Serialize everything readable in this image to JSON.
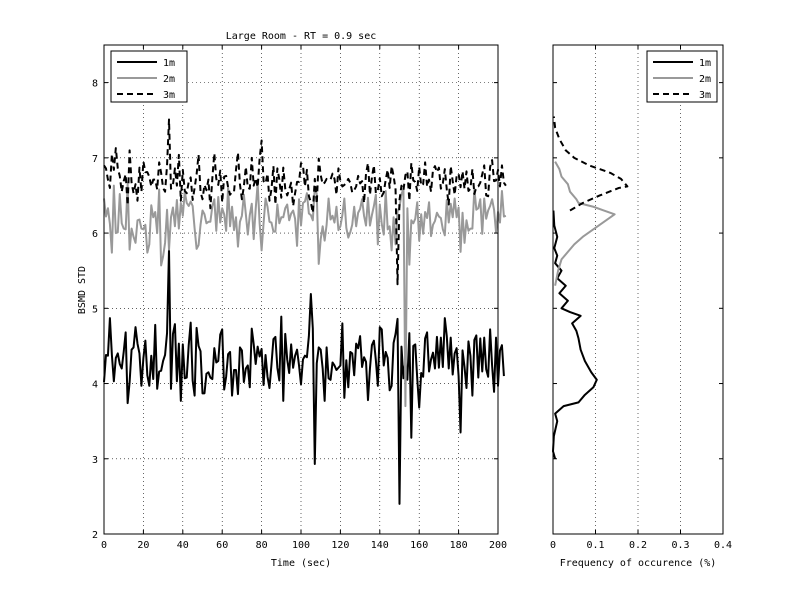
{
  "chart_data": [
    {
      "type": "line",
      "title": "Large Room -  RT = 0.9 sec",
      "xlabel": "Time (sec)",
      "ylabel": "BSMD STD",
      "xlim": [
        0,
        200
      ],
      "ylim": [
        2,
        8.5
      ],
      "xticks": [
        "0",
        "20",
        "40",
        "60",
        "80",
        "100",
        "120",
        "140",
        "160",
        "180",
        "200"
      ],
      "yticks": [
        "2",
        "3",
        "4",
        "5",
        "6",
        "7",
        "8"
      ],
      "grid": true,
      "legend_position": "top-left",
      "x_step": 1,
      "series": [
        {
          "name": "1m",
          "color": "#000000",
          "dash": "solid",
          "values": [
            4.02,
            4.38,
            4.37,
            4.87,
            4.38,
            4.03,
            4.34,
            4.4,
            4.26,
            4.2,
            4.42,
            4.68,
            3.74,
            4.02,
            4.45,
            4.48,
            4.75,
            4.53,
            4.4,
            3.97,
            4.34,
            4.57,
            4.11,
            3.97,
            4.37,
            4.06,
            4.78,
            3.93,
            4.16,
            4.17,
            4.3,
            4.38,
            4.67,
            5.78,
            3.93,
            4.66,
            4.79,
            4.03,
            4.53,
            3.77,
            4.52,
            4.07,
            4.08,
            4.51,
            4.81,
            4.04,
            3.84,
            4.74,
            4.5,
            4.43,
            3.87,
            3.87,
            4.13,
            4.15,
            4.08,
            4.06,
            4.47,
            4.28,
            4.3,
            4.65,
            4.72,
            3.92,
            4.09,
            4.39,
            4.42,
            3.84,
            4.18,
            4.18,
            3.86,
            4.48,
            4.44,
            4.02,
            4.2,
            4.24,
            3.95,
            4.73,
            4.52,
            4.26,
            4.49,
            4.36,
            4.46,
            3.98,
            4.38,
            4.09,
            3.94,
            4.25,
            4.59,
            4.62,
            4.21,
            4.04,
            4.89,
            3.77,
            4.66,
            4.32,
            4.14,
            4.52,
            4.21,
            4.37,
            4.45,
            4.24,
            3.99,
            4.32,
            4.37,
            4.35,
            4.63,
            5.19,
            4.73,
            2.93,
            4.27,
            4.48,
            4.45,
            4.2,
            3.77,
            4.48,
            4.07,
            4.05,
            4.28,
            4.24,
            4.18,
            4.21,
            4.24,
            4.8,
            3.81,
            4.31,
            3.95,
            4.42,
            4.4,
            4.11,
            4.53,
            4.47,
            4.63,
            4.22,
            4.35,
            4.29,
            3.78,
            4.2,
            4.51,
            4.57,
            4.31,
            3.97,
            4.75,
            4.72,
            4.24,
            4.42,
            4.34,
            3.91,
            3.97,
            4.54,
            4.66,
            4.86,
            2.4,
            4.49,
            4.07,
            4.3,
            4.05,
            4.67,
            3.28,
            4.5,
            4.52,
            4.07,
            3.68,
            4.14,
            4.09,
            4.6,
            4.68,
            4.16,
            4.32,
            4.41,
            4.2,
            4.62,
            4.21,
            4.61,
            4.22,
            4.87,
            4.63,
            4.2,
            4.61,
            4.12,
            4.4,
            4.47,
            4.1,
            3.35,
            4.44,
            4.22,
            3.94,
            4.56,
            4.37,
            3.84,
            4.58,
            4.64,
            4.08,
            4.6,
            4.16,
            4.61,
            4.19,
            4.09,
            4.72,
            4.24,
            3.89,
            4.61,
            3.97,
            4.44,
            4.51,
            4.1
          ]
        },
        {
          "name": "2m",
          "color": "#999999",
          "dash": "solid",
          "values": [
            6.46,
            6.22,
            6.33,
            6.12,
            5.74,
            6.63,
            6.0,
            6.01,
            6.52,
            6.13,
            6.06,
            6.05,
            6.65,
            5.78,
            6.06,
            5.95,
            5.87,
            6.17,
            6.18,
            6.06,
            6.05,
            6.11,
            5.74,
            5.85,
            6.37,
            6.21,
            6.28,
            6.0,
            6.58,
            5.57,
            5.69,
            5.87,
            6.31,
            5.78,
            6.21,
            6.34,
            6.09,
            6.44,
            6.06,
            6.4,
            6.23,
            6.55,
            6.4,
            6.36,
            6.42,
            6.36,
            6.06,
            5.79,
            5.84,
            6.11,
            6.3,
            6.25,
            6.13,
            6.15,
            6.15,
            6.36,
            6.45,
            6.03,
            6.48,
            6.14,
            6.33,
            6.25,
            6.03,
            6.61,
            6.09,
            6.35,
            6.04,
            6.21,
            5.82,
            6.15,
            6.23,
            6.51,
            6.25,
            5.98,
            6.24,
            6.39,
            5.92,
            6.32,
            6.66,
            6.13,
            5.77,
            6.13,
            6.46,
            6.35,
            6.15,
            6.14,
            6.02,
            6.02,
            6.38,
            6.13,
            6.21,
            6.21,
            6.33,
            6.38,
            6.17,
            6.26,
            6.3,
            6.19,
            5.83,
            6.45,
            6.1,
            6.4,
            6.42,
            6.53,
            6.26,
            6.24,
            6.17,
            6.61,
            6.52,
            5.59,
            5.92,
            6.09,
            5.9,
            6.11,
            6.46,
            6.18,
            6.23,
            6.14,
            6.35,
            6.04,
            6.09,
            6.24,
            6.46,
            6.07,
            5.94,
            6.01,
            6.11,
            6.35,
            6.09,
            6.27,
            6.32,
            6.45,
            6.23,
            6.1,
            6.47,
            6.1,
            6.24,
            6.36,
            6.51,
            5.85,
            6.38,
            6.12,
            5.98,
            6.56,
            6.05,
            6.09,
            5.77,
            6.21,
            5.85,
            6.29,
            6.34,
            6.52,
            6.58,
            3.7,
            6.33,
            5.58,
            6.17,
            6.13,
            6.19,
            6.41,
            5.9,
            6.25,
            5.99,
            6.28,
            6.2,
            6.41,
            5.96,
            6.11,
            6.16,
            6.27,
            6.22,
            6.2,
            6.05,
            5.97,
            6.44,
            6.14,
            6.39,
            6.21,
            6.46,
            6.21,
            6.34,
            5.75,
            6.27,
            5.87,
            6.17,
            6.03,
            6.06,
            6.06,
            6.59,
            6.31,
            6.33,
            6.45,
            5.99,
            6.46,
            6.19,
            6.3,
            6.36,
            6.45,
            6.31,
            6.01,
            6.28,
            6.14,
            6.56,
            6.22,
            6.23
          ]
        },
        {
          "name": "3m",
          "color": "#000000",
          "dash": "dashed",
          "values": [
            6.9,
            6.86,
            6.71,
            6.6,
            7.05,
            6.84,
            7.13,
            6.86,
            6.76,
            6.55,
            6.69,
            6.78,
            6.37,
            7.1,
            6.67,
            6.53,
            6.65,
            6.43,
            6.87,
            6.55,
            6.95,
            6.81,
            6.81,
            6.75,
            6.62,
            6.71,
            6.71,
            6.58,
            6.94,
            6.8,
            6.6,
            6.55,
            6.9,
            7.51,
            6.59,
            6.64,
            6.86,
            6.63,
            7.04,
            6.43,
            6.84,
            6.56,
            6.53,
            6.68,
            6.74,
            6.44,
            6.6,
            6.78,
            7.04,
            6.55,
            6.45,
            6.64,
            6.57,
            6.71,
            6.33,
            6.73,
            7.06,
            6.72,
            6.64,
            6.83,
            6.41,
            6.75,
            6.76,
            6.61,
            6.51,
            6.55,
            6.55,
            6.84,
            7.07,
            6.65,
            6.45,
            6.62,
            6.88,
            6.6,
            6.59,
            7.0,
            6.63,
            6.73,
            6.61,
            6.99,
            7.23,
            6.69,
            6.66,
            6.79,
            6.43,
            6.58,
            6.89,
            6.38,
            6.86,
            6.71,
            6.47,
            6.87,
            6.59,
            6.5,
            6.58,
            6.67,
            6.36,
            6.53,
            6.68,
            6.68,
            6.93,
            6.9,
            6.62,
            6.84,
            6.49,
            6.41,
            6.27,
            6.72,
            6.39,
            6.99,
            6.77,
            6.65,
            6.67,
            6.72,
            6.71,
            6.71,
            6.79,
            6.72,
            6.51,
            6.86,
            6.69,
            6.62,
            6.64,
            6.67,
            6.72,
            6.67,
            6.54,
            6.57,
            6.62,
            6.76,
            6.66,
            6.69,
            6.4,
            6.79,
            6.93,
            6.51,
            6.74,
            6.9,
            6.53,
            6.57,
            6.73,
            6.49,
            6.54,
            6.71,
            6.84,
            6.6,
            6.89,
            6.76,
            6.58,
            5.32,
            6.44,
            6.63,
            6.57,
            6.77,
            6.82,
            6.43,
            6.93,
            6.7,
            6.68,
            6.56,
            6.88,
            6.63,
            6.65,
            6.94,
            6.62,
            6.71,
            6.55,
            6.84,
            6.89,
            6.81,
            6.87,
            6.59,
            6.66,
            6.85,
            6.58,
            6.38,
            6.89,
            6.69,
            6.51,
            6.76,
            6.79,
            6.61,
            6.82,
            6.59,
            6.82,
            6.56,
            6.59,
            6.85,
            6.52,
            6.61,
            6.62,
            6.67,
            6.78,
            6.9,
            6.5,
            6.49,
            6.88,
            6.97,
            6.69,
            6.7,
            6.84,
            6.62,
            6.9,
            6.67,
            6.63
          ]
        }
      ]
    },
    {
      "type": "line",
      "xlabel": "Frequency of occurence (%)",
      "xlim": [
        0,
        0.4
      ],
      "ylim": [
        2,
        8.5
      ],
      "xticks": [
        "0",
        "0.1",
        "0.2",
        "0.3",
        "0.4"
      ],
      "grid": true,
      "legend_position": "top-right",
      "series": [
        {
          "name": "1m",
          "color": "#000000",
          "dash": "solid",
          "points": [
            [
              0.005,
              3.0
            ],
            [
              0.0,
              3.1
            ],
            [
              0.002,
              3.3
            ],
            [
              0.01,
              3.5
            ],
            [
              0.005,
              3.6
            ],
            [
              0.025,
              3.7
            ],
            [
              0.06,
              3.75
            ],
            [
              0.075,
              3.85
            ],
            [
              0.095,
              3.95
            ],
            [
              0.103,
              4.05
            ],
            [
              0.09,
              4.15
            ],
            [
              0.075,
              4.3
            ],
            [
              0.065,
              4.45
            ],
            [
              0.06,
              4.6
            ],
            [
              0.055,
              4.7
            ],
            [
              0.045,
              4.8
            ],
            [
              0.065,
              4.9
            ],
            [
              0.04,
              4.95
            ],
            [
              0.02,
              5.0
            ],
            [
              0.035,
              5.1
            ],
            [
              0.015,
              5.2
            ],
            [
              0.03,
              5.3
            ],
            [
              0.01,
              5.4
            ],
            [
              0.02,
              5.5
            ],
            [
              0.005,
              5.6
            ],
            [
              0.01,
              5.7
            ],
            [
              0.003,
              5.8
            ],
            [
              0.01,
              5.95
            ],
            [
              0.003,
              6.1
            ],
            [
              0.001,
              6.3
            ]
          ]
        },
        {
          "name": "2m",
          "color": "#999999",
          "dash": "solid",
          "points": [
            [
              0.005,
              5.3
            ],
            [
              0.012,
              5.5
            ],
            [
              0.02,
              5.65
            ],
            [
              0.035,
              5.75
            ],
            [
              0.05,
              5.85
            ],
            [
              0.07,
              5.95
            ],
            [
              0.095,
              6.05
            ],
            [
              0.12,
              6.15
            ],
            [
              0.145,
              6.25
            ],
            [
              0.12,
              6.3
            ],
            [
              0.095,
              6.35
            ],
            [
              0.06,
              6.4
            ],
            [
              0.055,
              6.45
            ],
            [
              0.04,
              6.55
            ],
            [
              0.035,
              6.65
            ],
            [
              0.02,
              6.75
            ],
            [
              0.015,
              6.85
            ],
            [
              0.005,
              6.95
            ]
          ]
        },
        {
          "name": "3m",
          "color": "#000000",
          "dash": "dashed",
          "points": [
            [
              0.04,
              6.3
            ],
            [
              0.07,
              6.4
            ],
            [
              0.11,
              6.5
            ],
            [
              0.155,
              6.6
            ],
            [
              0.175,
              6.62
            ],
            [
              0.16,
              6.72
            ],
            [
              0.135,
              6.8
            ],
            [
              0.085,
              6.9
            ],
            [
              0.05,
              7.0
            ],
            [
              0.03,
              7.1
            ],
            [
              0.015,
              7.25
            ],
            [
              0.005,
              7.4
            ],
            [
              0.002,
              7.55
            ]
          ]
        }
      ]
    }
  ]
}
